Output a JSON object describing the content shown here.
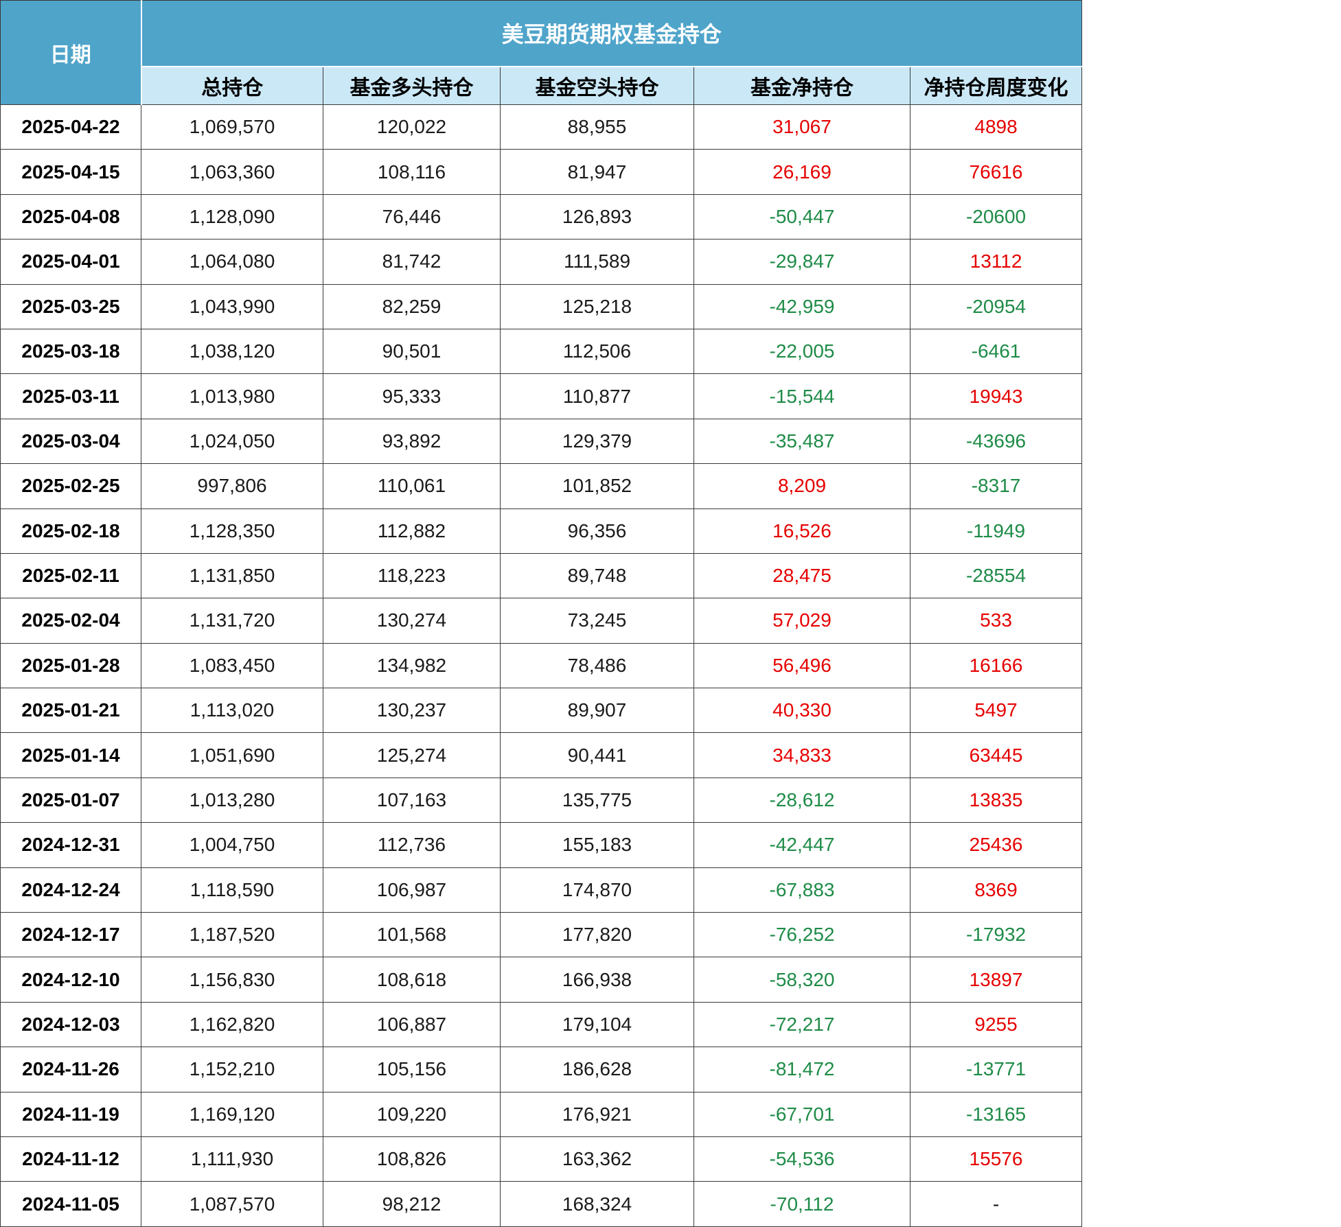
{
  "colors": {
    "header_bg": "#4FA4CA",
    "header_text": "#FFFFFF",
    "subheader_bg": "#CBE8F6",
    "positive_red": "#E60000",
    "negative_green": "#1E8B47",
    "neutral": "#1A1A1A",
    "grid_line": "#3A3A3A"
  },
  "table": {
    "date_header": "日期",
    "group_title": "美豆期货期权基金持仓",
    "columns": [
      "总持仓",
      "基金多头持仓",
      "基金空头持仓",
      "基金净持仓",
      "净持仓周度变化"
    ],
    "rows": [
      {
        "date": "2025-04-22",
        "total": "1,069,570",
        "long": "120,022",
        "short": "88,955",
        "net": "31,067",
        "net_color": "pos",
        "change": "4898",
        "change_color": "pos"
      },
      {
        "date": "2025-04-15",
        "total": "1,063,360",
        "long": "108,116",
        "short": "81,947",
        "net": "26,169",
        "net_color": "pos",
        "change": "76616",
        "change_color": "pos"
      },
      {
        "date": "2025-04-08",
        "total": "1,128,090",
        "long": "76,446",
        "short": "126,893",
        "net": "-50,447",
        "net_color": "neg",
        "change": "-20600",
        "change_color": "neg"
      },
      {
        "date": "2025-04-01",
        "total": "1,064,080",
        "long": "81,742",
        "short": "111,589",
        "net": "-29,847",
        "net_color": "neg",
        "change": "13112",
        "change_color": "pos"
      },
      {
        "date": "2025-03-25",
        "total": "1,043,990",
        "long": "82,259",
        "short": "125,218",
        "net": "-42,959",
        "net_color": "neg",
        "change": "-20954",
        "change_color": "neg"
      },
      {
        "date": "2025-03-18",
        "total": "1,038,120",
        "long": "90,501",
        "short": "112,506",
        "net": "-22,005",
        "net_color": "neg",
        "change": "-6461",
        "change_color": "neg"
      },
      {
        "date": "2025-03-11",
        "total": "1,013,980",
        "long": "95,333",
        "short": "110,877",
        "net": "-15,544",
        "net_color": "neg",
        "change": "19943",
        "change_color": "pos"
      },
      {
        "date": "2025-03-04",
        "total": "1,024,050",
        "long": "93,892",
        "short": "129,379",
        "net": "-35,487",
        "net_color": "neg",
        "change": "-43696",
        "change_color": "neg"
      },
      {
        "date": "2025-02-25",
        "total": "997,806",
        "long": "110,061",
        "short": "101,852",
        "net": "8,209",
        "net_color": "pos",
        "change": "-8317",
        "change_color": "neg"
      },
      {
        "date": "2025-02-18",
        "total": "1,128,350",
        "long": "112,882",
        "short": "96,356",
        "net": "16,526",
        "net_color": "pos",
        "change": "-11949",
        "change_color": "neg"
      },
      {
        "date": "2025-02-11",
        "total": "1,131,850",
        "long": "118,223",
        "short": "89,748",
        "net": "28,475",
        "net_color": "pos",
        "change": "-28554",
        "change_color": "neg"
      },
      {
        "date": "2025-02-04",
        "total": "1,131,720",
        "long": "130,274",
        "short": "73,245",
        "net": "57,029",
        "net_color": "pos",
        "change": "533",
        "change_color": "pos"
      },
      {
        "date": "2025-01-28",
        "total": "1,083,450",
        "long": "134,982",
        "short": "78,486",
        "net": "56,496",
        "net_color": "pos",
        "change": "16166",
        "change_color": "pos"
      },
      {
        "date": "2025-01-21",
        "total": "1,113,020",
        "long": "130,237",
        "short": "89,907",
        "net": "40,330",
        "net_color": "pos",
        "change": "5497",
        "change_color": "pos"
      },
      {
        "date": "2025-01-14",
        "total": "1,051,690",
        "long": "125,274",
        "short": "90,441",
        "net": "34,833",
        "net_color": "pos",
        "change": "63445",
        "change_color": "pos"
      },
      {
        "date": "2025-01-07",
        "total": "1,013,280",
        "long": "107,163",
        "short": "135,775",
        "net": "-28,612",
        "net_color": "neg",
        "change": "13835",
        "change_color": "pos"
      },
      {
        "date": "2024-12-31",
        "total": "1,004,750",
        "long": "112,736",
        "short": "155,183",
        "net": "-42,447",
        "net_color": "neg",
        "change": "25436",
        "change_color": "pos"
      },
      {
        "date": "2024-12-24",
        "total": "1,118,590",
        "long": "106,987",
        "short": "174,870",
        "net": "-67,883",
        "net_color": "neg",
        "change": "8369",
        "change_color": "pos"
      },
      {
        "date": "2024-12-17",
        "total": "1,187,520",
        "long": "101,568",
        "short": "177,820",
        "net": "-76,252",
        "net_color": "neg",
        "change": "-17932",
        "change_color": "neg"
      },
      {
        "date": "2024-12-10",
        "total": "1,156,830",
        "long": "108,618",
        "short": "166,938",
        "net": "-58,320",
        "net_color": "neg",
        "change": "13897",
        "change_color": "pos"
      },
      {
        "date": "2024-12-03",
        "total": "1,162,820",
        "long": "106,887",
        "short": "179,104",
        "net": "-72,217",
        "net_color": "neg",
        "change": "9255",
        "change_color": "pos"
      },
      {
        "date": "2024-11-26",
        "total": "1,152,210",
        "long": "105,156",
        "short": "186,628",
        "net": "-81,472",
        "net_color": "neg",
        "change": "-13771",
        "change_color": "neg"
      },
      {
        "date": "2024-11-19",
        "total": "1,169,120",
        "long": "109,220",
        "short": "176,921",
        "net": "-67,701",
        "net_color": "neg",
        "change": "-13165",
        "change_color": "neg"
      },
      {
        "date": "2024-11-12",
        "total": "1,111,930",
        "long": "108,826",
        "short": "163,362",
        "net": "-54,536",
        "net_color": "neg",
        "change": "15576",
        "change_color": "pos"
      },
      {
        "date": "2024-11-05",
        "total": "1,087,570",
        "long": "98,212",
        "short": "168,324",
        "net": "-70,112",
        "net_color": "neg",
        "change": "-",
        "change_color": "neu"
      }
    ]
  },
  "chart_data": {
    "type": "table",
    "title": "美豆期货期权基金持仓",
    "columns": [
      "日期",
      "总持仓",
      "基金多头持仓",
      "基金空头持仓",
      "基金净持仓",
      "净持仓周度变化"
    ],
    "rows": [
      [
        "2025-04-22",
        1069570,
        120022,
        88955,
        31067,
        4898
      ],
      [
        "2025-04-15",
        1063360,
        108116,
        81947,
        26169,
        76616
      ],
      [
        "2025-04-08",
        1128090,
        76446,
        126893,
        -50447,
        -20600
      ],
      [
        "2025-04-01",
        1064080,
        81742,
        111589,
        -29847,
        13112
      ],
      [
        "2025-03-25",
        1043990,
        82259,
        125218,
        -42959,
        -20954
      ],
      [
        "2025-03-18",
        1038120,
        90501,
        112506,
        -22005,
        -6461
      ],
      [
        "2025-03-11",
        1013980,
        95333,
        110877,
        -15544,
        19943
      ],
      [
        "2025-03-04",
        1024050,
        93892,
        129379,
        -35487,
        -43696
      ],
      [
        "2025-02-25",
        997806,
        110061,
        101852,
        8209,
        -8317
      ],
      [
        "2025-02-18",
        1128350,
        112882,
        96356,
        16526,
        -11949
      ],
      [
        "2025-02-11",
        1131850,
        118223,
        89748,
        28475,
        -28554
      ],
      [
        "2025-02-04",
        1131720,
        130274,
        73245,
        57029,
        533
      ],
      [
        "2025-01-28",
        1083450,
        134982,
        78486,
        56496,
        16166
      ],
      [
        "2025-01-21",
        1113020,
        130237,
        89907,
        40330,
        5497
      ],
      [
        "2025-01-14",
        1051690,
        125274,
        90441,
        34833,
        63445
      ],
      [
        "2025-01-07",
        1013280,
        107163,
        135775,
        -28612,
        13835
      ],
      [
        "2024-12-31",
        1004750,
        112736,
        155183,
        -42447,
        25436
      ],
      [
        "2024-12-24",
        1118590,
        106987,
        174870,
        -67883,
        8369
      ],
      [
        "2024-12-17",
        1187520,
        101568,
        177820,
        -76252,
        -17932
      ],
      [
        "2024-12-10",
        1156830,
        108618,
        166938,
        -58320,
        13897
      ],
      [
        "2024-12-03",
        1162820,
        106887,
        179104,
        -72217,
        9255
      ],
      [
        "2024-11-26",
        1152210,
        105156,
        186628,
        -81472,
        -13771
      ],
      [
        "2024-11-19",
        1169120,
        109220,
        176921,
        -67701,
        -13165
      ],
      [
        "2024-11-12",
        1111930,
        108826,
        163362,
        -54536,
        15576
      ],
      [
        "2024-11-05",
        1087570,
        98212,
        168324,
        -70112,
        null
      ]
    ],
    "notes": {
      "positive_values_color": "red",
      "negative_values_color": "green",
      "weekly_change_no_thousand_separator": true
    }
  }
}
